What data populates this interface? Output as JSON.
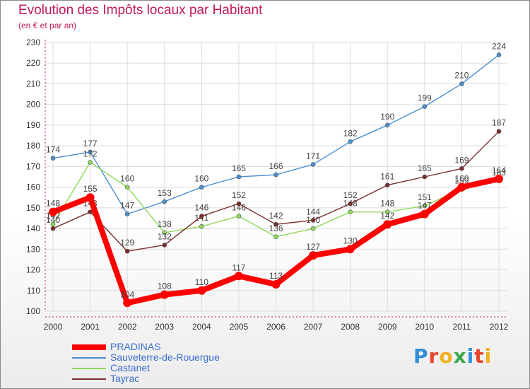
{
  "title": "Evolution des Impôts locaux par Habitant",
  "subtitle": "(en € et par an)",
  "logo_text": "Proxiti",
  "logo_colors": [
    "#2f8fd8",
    "#e8442a",
    "#f2b01e",
    "#3aa84a",
    "#2f8fd8",
    "#e8442a",
    "#f2b01e"
  ],
  "chart_data": {
    "type": "line",
    "x": [
      2000,
      2001,
      2002,
      2003,
      2004,
      2005,
      2006,
      2007,
      2008,
      2009,
      2010,
      2011,
      2012
    ],
    "ylim": [
      100,
      230
    ],
    "yticks": [
      100,
      110,
      120,
      130,
      140,
      150,
      160,
      170,
      180,
      190,
      200,
      210,
      220,
      230
    ],
    "grid": true,
    "legend_position": "bottom-left",
    "series": [
      {
        "name": "Sauveterre-de-Rouergue",
        "color": "#4a8fd0",
        "values": [
          174,
          177,
          147,
          153,
          160,
          165,
          166,
          171,
          182,
          190,
          199,
          210,
          224
        ]
      },
      {
        "name": "Castanet",
        "color": "#8fd85a",
        "values": [
          142,
          172,
          160,
          138,
          141,
          146,
          136,
          140,
          148,
          148,
          151,
          159,
          163
        ]
      },
      {
        "name": "Tayrac",
        "color": "#7a2b2b",
        "values": [
          140,
          148,
          129,
          132,
          146,
          152,
          142,
          144,
          152,
          161,
          165,
          169,
          187
        ]
      },
      {
        "name": "PRADINAS",
        "color": "#ff0000",
        "values": [
          148,
          155,
          104,
          108,
          110,
          117,
          113,
          127,
          130,
          142,
          147,
          160,
          164
        ]
      }
    ],
    "legend_order": [
      "PRADINAS",
      "Sauveterre-de-Rouergue",
      "Castanet",
      "Tayrac"
    ]
  }
}
